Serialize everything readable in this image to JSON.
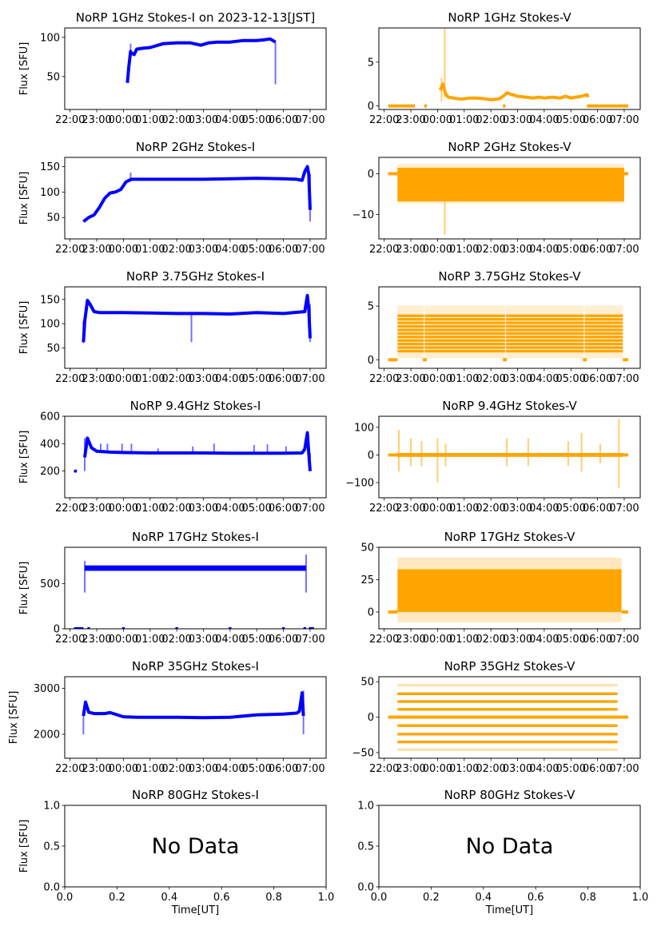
{
  "figure": {
    "title_suffix_date": "2023-12-13[JST]"
  },
  "chart_data": [
    {
      "type": "scatter",
      "panel": "1GHz-I",
      "title": "NoRP 1GHz Stokes-I on 2023-12-13[JST]",
      "ylabel": "Flux [SFU]",
      "xlabel": "",
      "color": "#0000ff",
      "ylim": [
        8,
        112
      ],
      "yticks": [
        50,
        100
      ],
      "xlim_hours": [
        -2.2,
        7.6
      ],
      "xticks": [
        "22:00",
        "23:00",
        "00:00",
        "01:00",
        "02:00",
        "03:00",
        "04:00",
        "05:00",
        "06:00",
        "07:00"
      ],
      "x": [
        0.15,
        0.2,
        0.27,
        0.3,
        0.4,
        0.5,
        0.7,
        1.0,
        1.5,
        2.0,
        2.5,
        2.9,
        3.2,
        3.5,
        4.0,
        4.5,
        5.0,
        5.3,
        5.5,
        5.6,
        5.7
      ],
      "y": [
        42,
        62,
        82,
        80,
        78,
        85,
        86,
        87,
        92,
        93,
        93,
        90,
        93,
        94,
        94,
        96,
        96,
        97,
        98,
        96,
        94
      ],
      "spikes": [
        {
          "x": 0.27,
          "lo": 80,
          "hi": 92
        },
        {
          "x": 5.7,
          "lo": 40,
          "hi": 94
        }
      ]
    },
    {
      "type": "scatter",
      "panel": "1GHz-V",
      "title": "NoRP 1GHz Stokes-V",
      "ylabel": "",
      "color": "#ffa500",
      "ylim": [
        -0.4,
        8.9
      ],
      "yticks": [
        0,
        5
      ],
      "xlim_hours": [
        -2.2,
        7.6
      ],
      "xticks": [
        "22:00",
        "23:00",
        "00:00",
        "01:00",
        "02:00",
        "03:00",
        "04:00",
        "05:00",
        "06:00",
        "07:00"
      ],
      "zero_segments": [
        [
          -1.85,
          -0.85
        ],
        [
          -0.5,
          -0.4
        ],
        [
          2.45,
          2.55
        ],
        [
          5.6,
          7.15
        ]
      ],
      "x": [
        0.1,
        0.2,
        0.3,
        0.4,
        0.6,
        0.8,
        1.0,
        1.2,
        1.5,
        1.8,
        2.0,
        2.3,
        2.5,
        2.6,
        2.8,
        3.0,
        3.3,
        3.6,
        3.8,
        4.0,
        4.3,
        4.6,
        4.8,
        5.0,
        5.2,
        5.4,
        5.5,
        5.6,
        5.65
      ],
      "y": [
        1.8,
        2.5,
        1.4,
        1.0,
        0.9,
        0.8,
        0.8,
        0.9,
        0.9,
        0.8,
        0.7,
        0.8,
        1.2,
        1.5,
        1.3,
        1.1,
        1.0,
        0.9,
        1.0,
        0.9,
        1.0,
        0.9,
        1.1,
        0.9,
        1.0,
        1.1,
        1.2,
        1.3,
        1.0
      ],
      "spikes": [
        {
          "x": 0.27,
          "lo": 1.0,
          "hi": 8.8
        },
        {
          "x": 0.15,
          "lo": 0.5,
          "hi": 3.2
        }
      ]
    },
    {
      "type": "scatter",
      "panel": "2GHz-I",
      "title": "NoRP 2GHz Stokes-I",
      "ylabel": "Flux [SFU]",
      "color": "#0000ff",
      "ylim": [
        8,
        168
      ],
      "yticks": [
        50,
        100,
        150
      ],
      "xlim_hours": [
        -2.2,
        7.6
      ],
      "xticks": [
        "22:00",
        "23:00",
        "00:00",
        "01:00",
        "02:00",
        "03:00",
        "04:00",
        "05:00",
        "06:00",
        "07:00"
      ],
      "x": [
        -1.5,
        -1.3,
        -1.1,
        -0.9,
        -0.7,
        -0.5,
        -0.3,
        -0.1,
        0.1,
        0.3,
        1.0,
        2.0,
        3.0,
        4.0,
        5.0,
        6.0,
        6.5,
        6.7,
        6.8,
        6.9,
        6.95,
        7.0
      ],
      "y": [
        42,
        50,
        55,
        70,
        88,
        98,
        100,
        105,
        120,
        125,
        125,
        125,
        125,
        126,
        127,
        126,
        125,
        123,
        140,
        150,
        135,
        65
      ],
      "spikes": [
        {
          "x": 0.27,
          "lo": 122,
          "hi": 138
        },
        {
          "x": 7.0,
          "lo": 42,
          "hi": 135
        }
      ]
    },
    {
      "type": "scatter",
      "panel": "2GHz-V",
      "title": "NoRP 2GHz Stokes-V",
      "ylabel": "",
      "color": "#ffa500",
      "ylim": [
        -16,
        4
      ],
      "yticks": [
        0,
        -10
      ],
      "xlim_hours": [
        -2.2,
        7.6
      ],
      "xticks": [
        "22:00",
        "23:00",
        "00:00",
        "01:00",
        "02:00",
        "03:00",
        "04:00",
        "05:00",
        "06:00",
        "07:00"
      ],
      "band": {
        "x_from": -1.5,
        "x_to": 7.0,
        "lo": -6.5,
        "hi": 1.5,
        "stripe_step": 0.45
      },
      "zero_segments": [
        [
          -1.85,
          7.15
        ]
      ],
      "spikes": [
        {
          "x": 0.27,
          "lo": -6,
          "hi": -15
        }
      ]
    },
    {
      "type": "scatter",
      "panel": "3.75GHz-I",
      "title": "NoRP 3.75GHz Stokes-I",
      "ylabel": "Flux [SFU]",
      "color": "#0000ff",
      "ylim": [
        8,
        176
      ],
      "yticks": [
        50,
        100,
        150
      ],
      "xlim_hours": [
        -2.2,
        7.6
      ],
      "xticks": [
        "22:00",
        "23:00",
        "00:00",
        "01:00",
        "02:00",
        "03:00",
        "04:00",
        "05:00",
        "06:00",
        "07:00"
      ],
      "x": [
        -1.5,
        -1.45,
        -1.35,
        -1.25,
        -1.1,
        -0.9,
        0,
        1,
        2,
        3,
        4,
        5,
        6,
        6.8,
        6.9,
        6.95,
        7.0
      ],
      "y": [
        62,
        105,
        148,
        140,
        125,
        123,
        123,
        122,
        121,
        121,
        120,
        123,
        121,
        125,
        158,
        130,
        70
      ],
      "spikes": [
        {
          "x": -1.5,
          "lo": 60,
          "hi": 105
        },
        {
          "x": 2.55,
          "lo": 62,
          "hi": 122
        },
        {
          "x": 7.0,
          "lo": 62,
          "hi": 140
        }
      ]
    },
    {
      "type": "scatter",
      "panel": "3.75GHz-V",
      "title": "NoRP 3.75GHz Stokes-V",
      "ylabel": "",
      "color": "#ffa500",
      "ylim": [
        -0.8,
        6.8
      ],
      "yticks": [
        0,
        5
      ],
      "xlim_hours": [
        -2.2,
        7.6
      ],
      "xticks": [
        "22:00",
        "23:00",
        "00:00",
        "01:00",
        "02:00",
        "03:00",
        "04:00",
        "05:00",
        "06:00",
        "07:00"
      ],
      "band": {
        "x_from": -1.5,
        "x_to": 6.95,
        "lo": 0.8,
        "hi": 4.4,
        "stripe_step": 0.33
      },
      "gaps": [
        -0.5,
        2.55,
        5.5
      ],
      "zero_segments": [
        [
          -1.85,
          -1.5
        ],
        [
          -0.55,
          -0.4
        ],
        [
          2.45,
          2.6
        ],
        [
          5.45,
          5.6
        ],
        [
          6.95,
          7.15
        ]
      ]
    },
    {
      "type": "scatter",
      "panel": "9.4GHz-I",
      "title": "NoRP 9.4GHz Stokes-I",
      "ylabel": "Flux [SFU]",
      "color": "#0000ff",
      "ylim": [
        5,
        600
      ],
      "yticks": [
        200,
        400,
        600
      ],
      "xlim_hours": [
        -2.2,
        7.6
      ],
      "xticks": [
        "22:00",
        "23:00",
        "00:00",
        "01:00",
        "02:00",
        "03:00",
        "04:00",
        "05:00",
        "06:00",
        "07:00"
      ],
      "x": [
        -1.45,
        -1.35,
        -1.2,
        -1.0,
        -0.5,
        0,
        1,
        2,
        3,
        4,
        5,
        6,
        6.7,
        6.8,
        6.9,
        6.95,
        7.0
      ],
      "y": [
        300,
        440,
        370,
        345,
        338,
        335,
        332,
        332,
        332,
        330,
        330,
        330,
        332,
        360,
        480,
        330,
        200
      ],
      "isolated": [
        {
          "x": -1.8,
          "y": 200
        }
      ],
      "spikes": [
        {
          "x": -1.45,
          "lo": 200,
          "hi": 440
        },
        {
          "x": 7.0,
          "lo": 200,
          "hi": 330
        },
        {
          "x": -0.85,
          "lo": 340,
          "hi": 400
        },
        {
          "x": -0.6,
          "lo": 340,
          "hi": 400
        },
        {
          "x": -0.05,
          "lo": 340,
          "hi": 400
        },
        {
          "x": 0.3,
          "lo": 330,
          "hi": 400
        },
        {
          "x": 1.3,
          "lo": 330,
          "hi": 365
        },
        {
          "x": 2.6,
          "lo": 330,
          "hi": 380
        },
        {
          "x": 3.4,
          "lo": 325,
          "hi": 400
        },
        {
          "x": 4.9,
          "lo": 330,
          "hi": 390
        },
        {
          "x": 5.4,
          "lo": 330,
          "hi": 395
        },
        {
          "x": 6.1,
          "lo": 330,
          "hi": 380
        }
      ]
    },
    {
      "type": "scatter",
      "panel": "9.4GHz-V",
      "title": "NoRP 9.4GHz Stokes-V",
      "ylabel": "",
      "color": "#ffa500",
      "ylim": [
        -155,
        140
      ],
      "yticks": [
        -100,
        0,
        100
      ],
      "xlim_hours": [
        -2.2,
        7.6
      ],
      "xticks": [
        "22:00",
        "23:00",
        "00:00",
        "01:00",
        "02:00",
        "03:00",
        "04:00",
        "05:00",
        "06:00",
        "07:00"
      ],
      "band": {
        "x_from": -1.5,
        "x_to": 6.95,
        "lo": -7,
        "hi": 7,
        "stripe_step": 0
      },
      "zero_segments": [
        [
          -1.85,
          7.15
        ]
      ],
      "spikes": [
        {
          "x": -1.45,
          "lo": -60,
          "hi": 90
        },
        {
          "x": -1.0,
          "lo": -40,
          "hi": 60
        },
        {
          "x": -0.6,
          "lo": -40,
          "hi": 50
        },
        {
          "x": 0.0,
          "lo": -100,
          "hi": 60
        },
        {
          "x": 0.3,
          "lo": -40,
          "hi": 40
        },
        {
          "x": 2.6,
          "lo": -40,
          "hi": 60
        },
        {
          "x": 3.4,
          "lo": -40,
          "hi": 60
        },
        {
          "x": 4.9,
          "lo": -40,
          "hi": 50
        },
        {
          "x": 5.4,
          "lo": -60,
          "hi": 80
        },
        {
          "x": 6.1,
          "lo": -30,
          "hi": 40
        },
        {
          "x": 6.8,
          "lo": -120,
          "hi": 130
        }
      ]
    },
    {
      "type": "scatter",
      "panel": "17GHz-I",
      "title": "NoRP 17GHz Stokes-I",
      "ylabel": "Flux [SFU]",
      "color": "#0000ff",
      "ylim": [
        0,
        900
      ],
      "yticks": [
        0,
        500
      ],
      "xlim_hours": [
        -2.2,
        7.6
      ],
      "xticks": [
        "22:00",
        "23:00",
        "00:00",
        "01:00",
        "02:00",
        "03:00",
        "04:00",
        "05:00",
        "06:00",
        "07:00"
      ],
      "band": {
        "x_from": -1.45,
        "x_to": 6.85,
        "lo": 640,
        "hi": 700,
        "stripe_step": 0
      },
      "spikes": [
        {
          "x": -1.45,
          "lo": 400,
          "hi": 750
        },
        {
          "x": 6.85,
          "lo": 400,
          "hi": 820
        }
      ],
      "zero_segments": [
        [
          -1.85,
          -1.5
        ],
        [
          -1.35,
          -1.25
        ],
        [
          -0.05,
          0.05
        ],
        [
          1.95,
          2.05
        ],
        [
          3.95,
          4.05
        ],
        [
          5.95,
          6.05
        ],
        [
          6.75,
          6.85
        ],
        [
          6.95,
          7.15
        ]
      ]
    },
    {
      "type": "scatter",
      "panel": "17GHz-V",
      "title": "NoRP 17GHz Stokes-V",
      "ylabel": "",
      "color": "#ffa500",
      "ylim": [
        -13,
        50
      ],
      "yticks": [
        0,
        25,
        50
      ],
      "xlim_hours": [
        -2.2,
        7.6
      ],
      "xticks": [
        "22:00",
        "23:00",
        "00:00",
        "01:00",
        "02:00",
        "03:00",
        "04:00",
        "05:00",
        "06:00",
        "07:00"
      ],
      "band": {
        "x_from": -1.5,
        "x_to": 6.9,
        "lo": 0,
        "hi": 33,
        "stripe_step": 0
      },
      "haze": {
        "lo": -8,
        "hi": 42
      },
      "zero_segments": [
        [
          -1.85,
          -1.5
        ],
        [
          6.9,
          7.15
        ]
      ]
    },
    {
      "type": "scatter",
      "panel": "35GHz-I",
      "title": "NoRP 35GHz Stokes-I",
      "ylabel": "Flux [SFU]",
      "color": "#0000ff",
      "ylim": [
        1480,
        3250
      ],
      "yticks": [
        2000,
        3000
      ],
      "xlim_hours": [
        -2.2,
        7.6
      ],
      "xticks": [
        "22:00",
        "23:00",
        "00:00",
        "01:00",
        "02:00",
        "03:00",
        "04:00",
        "05:00",
        "06:00",
        "07:00"
      ],
      "x": [
        -1.5,
        -1.42,
        -1.3,
        -1.1,
        -0.7,
        -0.5,
        0,
        0.5,
        1,
        2,
        3,
        4,
        5,
        6,
        6.5,
        6.6,
        6.7,
        6.75
      ],
      "y": [
        2400,
        2700,
        2480,
        2450,
        2450,
        2470,
        2380,
        2370,
        2370,
        2370,
        2360,
        2370,
        2420,
        2440,
        2460,
        2500,
        2900,
        2400
      ],
      "spikes": [
        {
          "x": -1.5,
          "lo": 2000,
          "hi": 2400
        },
        {
          "x": 6.75,
          "lo": 2000,
          "hi": 2950
        }
      ]
    },
    {
      "type": "scatter",
      "panel": "35GHz-V",
      "title": "NoRP 35GHz Stokes-V",
      "ylabel": "",
      "color": "#ffa500",
      "ylim": [
        -58,
        57
      ],
      "yticks": [
        -50,
        0,
        50
      ],
      "xlim_hours": [
        -2.2,
        7.6
      ],
      "xticks": [
        "22:00",
        "23:00",
        "00:00",
        "01:00",
        "02:00",
        "03:00",
        "04:00",
        "05:00",
        "06:00",
        "07:00"
      ],
      "levels_solid": [
        33,
        22,
        11,
        0,
        -12,
        -24,
        -35
      ],
      "levels_faint": [
        45,
        -46
      ],
      "level_x_range": [
        -1.5,
        6.75
      ],
      "zero_segments": [
        [
          -1.85,
          7.15
        ]
      ]
    },
    {
      "type": "scatter",
      "panel": "80GHz-I",
      "title": "NoRP 80GHz Stokes-I",
      "ylabel": "Flux [SFU]",
      "xlabel": "Time[UT]",
      "ylim": [
        0,
        1
      ],
      "xlim": [
        0,
        1
      ],
      "yticks": [
        "0.0",
        "0.5",
        "1.0"
      ],
      "xticks": [
        "0.0",
        "0.2",
        "0.4",
        "0.6",
        "0.8",
        "1.0"
      ],
      "annotation": "No Data"
    },
    {
      "type": "scatter",
      "panel": "80GHz-V",
      "title": "NoRP 80GHz Stokes-V",
      "ylabel": "",
      "xlabel": "Time[UT]",
      "ylim": [
        0,
        1
      ],
      "xlim": [
        0,
        1
      ],
      "yticks": [
        "0.0",
        "0.5",
        "1.0"
      ],
      "xticks": [
        "0.0",
        "0.2",
        "0.4",
        "0.6",
        "0.8",
        "1.0"
      ],
      "annotation": "No Data"
    }
  ]
}
